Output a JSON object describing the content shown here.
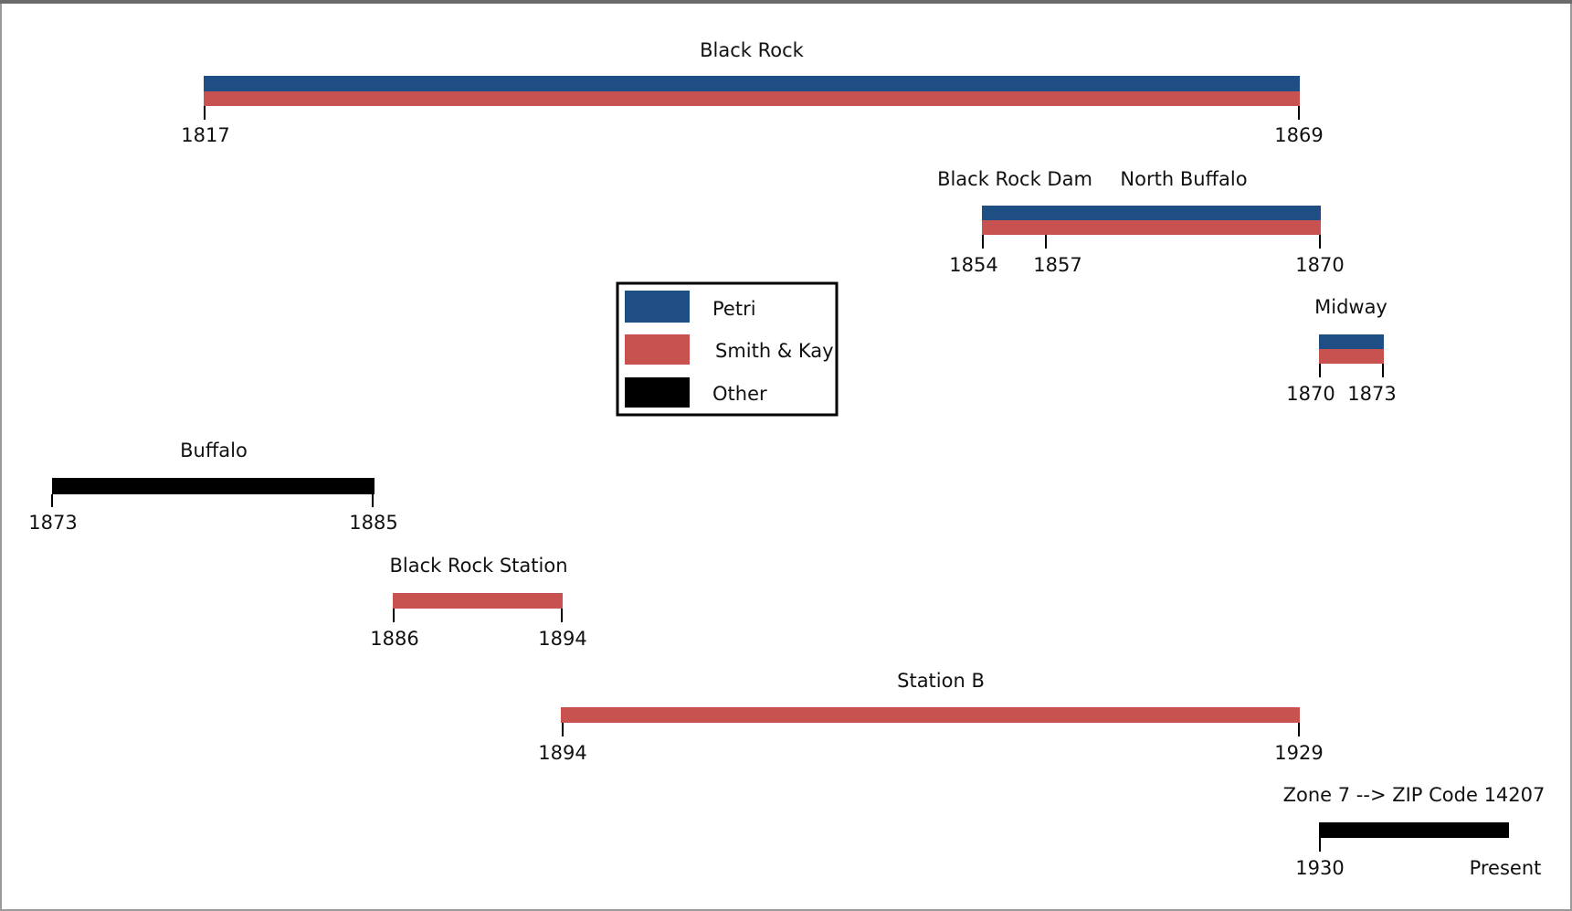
{
  "colors": {
    "petri": "#1F4E84",
    "smith_kay": "#C8524F",
    "other": "#000000",
    "tick": "#000000"
  },
  "legend": [
    {
      "label": "Petri",
      "color_key": "petri"
    },
    {
      "label": "Smith & Kay",
      "color_key": "smith_kay"
    },
    {
      "label": "Other",
      "color_key": "other"
    }
  ],
  "periods": [
    {
      "id": "black-rock",
      "title": "Black Rock",
      "start": "1817",
      "end": "1869",
      "layers": [
        "petri",
        "smith_kay"
      ]
    },
    {
      "id": "black-rock-dam",
      "titles": [
        "Black Rock Dam",
        "North Buffalo"
      ],
      "ticks": [
        "1854",
        "1857",
        "1870"
      ],
      "layers": [
        "petri",
        "smith_kay"
      ]
    },
    {
      "id": "midway",
      "title": "Midway",
      "start": "1870",
      "end": "1873",
      "layers": [
        "petri",
        "smith_kay"
      ]
    },
    {
      "id": "buffalo",
      "title": "Buffalo",
      "start": "1873",
      "end": "1885",
      "layers": [
        "other"
      ]
    },
    {
      "id": "black-rock-station",
      "title": "Black Rock Station",
      "start": "1886",
      "end": "1894",
      "layers": [
        "smith_kay"
      ]
    },
    {
      "id": "station-b",
      "title": "Station B",
      "start": "1894",
      "end": "1929",
      "layers": [
        "smith_kay"
      ]
    },
    {
      "id": "zone-7",
      "title": "Zone 7 --> ZIP Code 14207",
      "start": "1930",
      "end": "Present",
      "layers": [
        "other"
      ]
    }
  ]
}
